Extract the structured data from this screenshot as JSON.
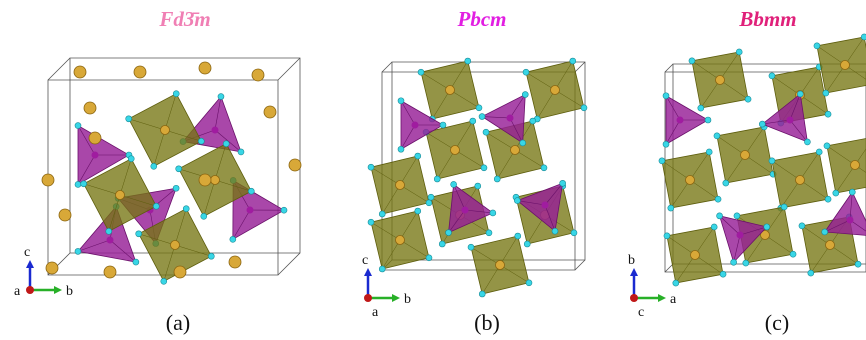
{
  "panels": [
    {
      "title": "Fd3̄m",
      "label": "(a)",
      "axes": {
        "up": "c",
        "out": "a",
        "right": "b"
      }
    },
    {
      "title": "Pbcm",
      "label": "(b)",
      "axes": {
        "up": "c",
        "out": "a",
        "right": "b"
      }
    },
    {
      "title": "Bbmm",
      "label": "(c)",
      "axes": {
        "up": "b",
        "out": "c",
        "right": "a"
      }
    }
  ]
}
